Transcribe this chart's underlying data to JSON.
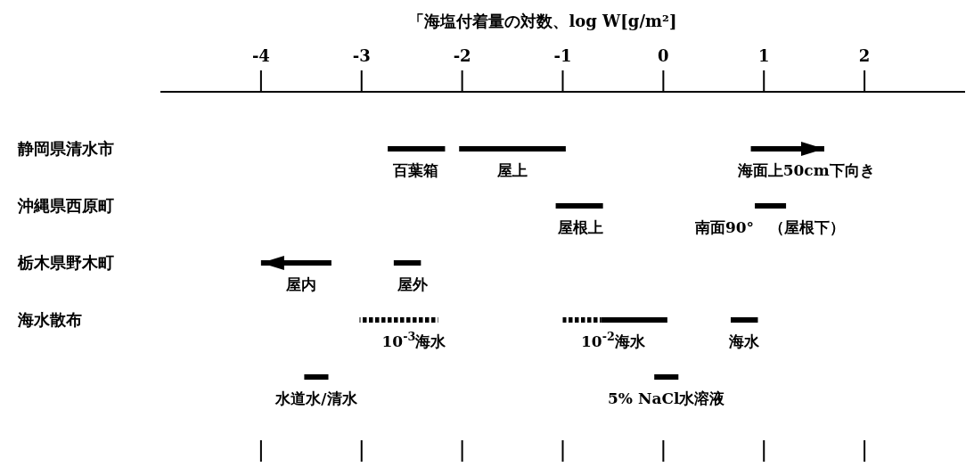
{
  "chart_data": {
    "type": "bar",
    "orientation": "horizontal",
    "xlabel": "「海塩付着量の対数、log W[g/m²]",
    "categories": [
      "静岡県清水市",
      "沖縄県西原町",
      "栃木県野木町",
      "海水散布",
      null
    ],
    "xlim": [
      -5,
      3
    ],
    "xticks": [
      -4,
      -3,
      -2,
      -1,
      0,
      1,
      2
    ],
    "series": [
      {
        "color": "#000000",
        "values": [
          0.57,
          null,
          null,
          null,
          null
        ],
        "base": [
          -2.74,
          null,
          null,
          null,
          null
        ]
      },
      {
        "color": "#000000",
        "values": [
          1.06,
          null,
          null,
          null,
          null
        ],
        "base": [
          -2.03,
          null,
          null,
          null,
          null
        ]
      },
      {
        "color": "#000000",
        "values": [
          0.73,
          null,
          null,
          null,
          null
        ],
        "base": [
          0.87,
          null,
          null,
          null,
          null
        ],
        "marker": "triangle"
      },
      {
        "color": "#000000",
        "values": [
          null,
          0.47,
          null,
          null,
          null
        ],
        "base": [
          null,
          -1.07,
          null,
          null,
          null
        ]
      },
      {
        "color": "#000000",
        "values": [
          null,
          0.31,
          null,
          null,
          null
        ],
        "base": [
          null,
          0.91,
          null,
          null,
          null
        ]
      },
      {
        "color": "#000000",
        "values": [
          null,
          null,
          -0.7,
          null,
          null
        ],
        "base": [
          null,
          null,
          -3.3,
          null,
          null
        ],
        "marker": "triangle"
      },
      {
        "color": "#000000",
        "values": [
          null,
          null,
          0.27,
          null,
          null
        ],
        "base": [
          null,
          null,
          -2.68,
          null,
          null
        ]
      },
      {
        "color": "#000000",
        "values": [
          null,
          null,
          null,
          0.78,
          null
        ],
        "base": [
          null,
          null,
          null,
          -3.02,
          null
        ],
        "line_style": "dotted"
      },
      {
        "color": "#000000",
        "values": [
          null,
          null,
          null,
          0.38,
          null
        ],
        "base": [
          null,
          null,
          null,
          -1.0,
          null
        ],
        "line_style": "dotted"
      },
      {
        "color": "#000000",
        "values": [
          null,
          null,
          null,
          0.66,
          null
        ],
        "base": [
          null,
          null,
          null,
          -0.62,
          null
        ]
      },
      {
        "color": "#000000",
        "values": [
          null,
          null,
          null,
          0.27,
          null
        ],
        "base": [
          null,
          null,
          null,
          0.67,
          null
        ]
      },
      {
        "color": "#000000",
        "values": [
          null,
          null,
          null,
          null,
          0.24
        ],
        "base": [
          null,
          null,
          null,
          null,
          -3.57
        ]
      },
      {
        "color": "#000000",
        "values": [
          null,
          null,
          null,
          null,
          0.24
        ],
        "base": [
          null,
          null,
          null,
          null,
          -0.09
        ]
      }
    ],
    "annotations": [
      {
        "text": "百葉箱",
        "x": -2.46,
        "y": "静岡県清水市"
      },
      {
        "text": "屋上",
        "x": -1.5,
        "y": "静岡県清水市"
      },
      {
        "text": "海面上50cm下向き",
        "x": 1.42,
        "y": "静岡県清水市"
      },
      {
        "text": "屋根上",
        "x": -0.82,
        "y": "沖縄県西原町"
      },
      {
        "text": "南面90°　（屋根下）",
        "x": 1.06,
        "y": "沖縄県西原町"
      },
      {
        "text": "屋内",
        "x": -3.6,
        "y": "栃木県野木町"
      },
      {
        "text": "屋外",
        "x": -2.49,
        "y": "栃木県野木町"
      },
      {
        "text": "10$^{-3}$海水",
        "x": -2.48,
        "y": "海水散布"
      },
      {
        "text": "10$^{-2}$海水",
        "x": -0.5,
        "y": "海水散布"
      },
      {
        "text": "海水",
        "x": 0.8,
        "y": "海水散布"
      },
      "水道水/清水",
      "5% NaCl水溶液"
    ]
  }
}
